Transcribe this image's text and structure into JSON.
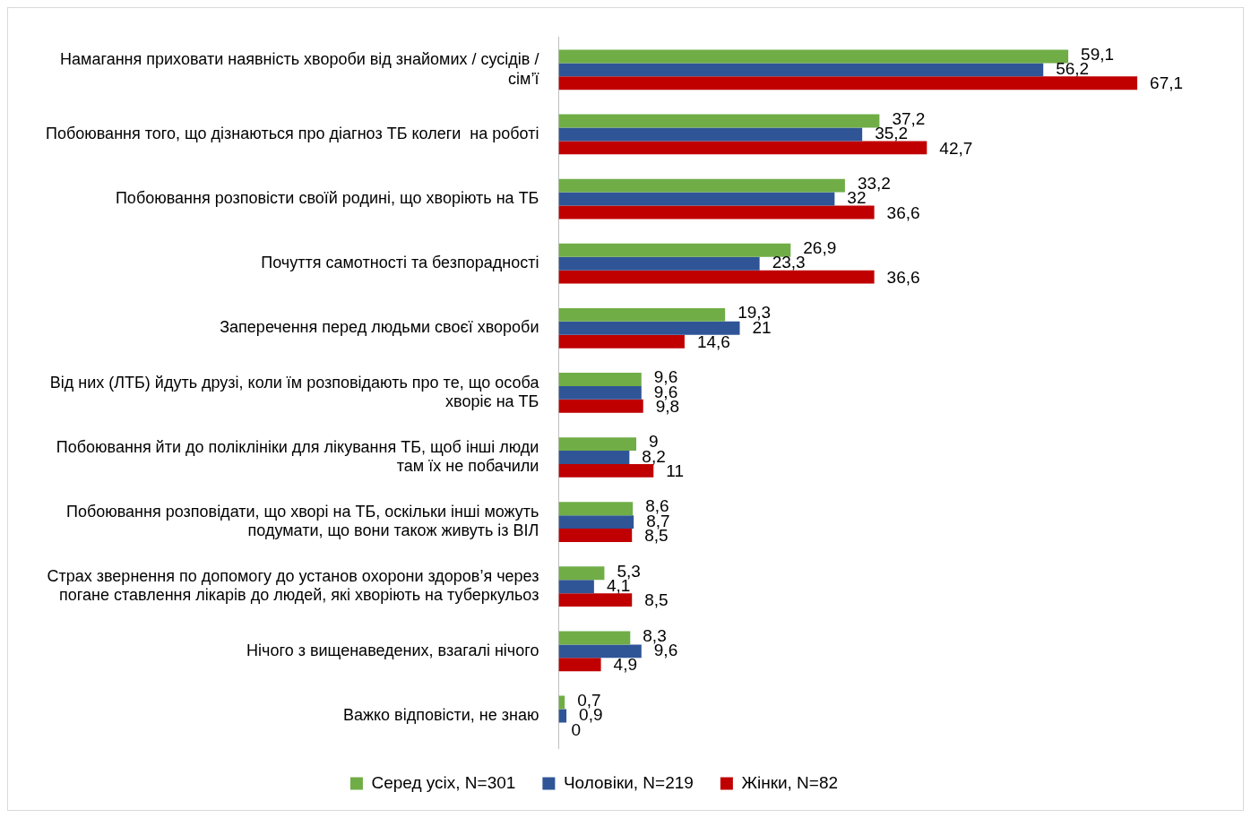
{
  "chart_data": {
    "type": "bar",
    "orientation": "horizontal",
    "categories": [
      "Намагання приховати наявність хвороби від знайомих / сусідів / сім’ї",
      "Побоювання того, що дізнаються про діагноз ТБ колеги  на роботі",
      "Побоювання розповісти своїй родині, що хворіють на ТБ",
      "Почуття самотності та безпорадності",
      "Заперечення перед людьми своєї хвороби",
      "Від них (ЛТБ) йдуть друзі, коли їм розповідають про те, що особа хворіє на ТБ",
      "Побоювання йти до поліклініки для лікування ТБ, щоб інші люди там їх не побачили",
      "Побоювання розповідати, що хворі на ТБ, оскільки інші можуть подумати, що вони також живуть із ВІЛ",
      "Страх звернення по допомогу до установ охорони здоров’я через погане ставлення лікарів до людей, які хворіють на туберкульоз",
      "Нічого з вищенаведених, взагалі нічого",
      "Важко відповісти, не знаю"
    ],
    "series": [
      {
        "name": "Серед усіх, N=301",
        "color": "#70ad47",
        "values": [
          59.1,
          37.2,
          33.2,
          26.9,
          19.3,
          9.6,
          9,
          8.6,
          5.3,
          8.3,
          0.7
        ],
        "value_labels": [
          "59,1",
          "37,2",
          "33,2",
          "26,9",
          "19,3",
          "9,6",
          "9",
          "8,6",
          "5,3",
          "8,3",
          "0,7"
        ]
      },
      {
        "name": "Чоловіки, N=219",
        "color": "#2f5597",
        "values": [
          56.2,
          35.2,
          32,
          23.3,
          21,
          9.6,
          8.2,
          8.7,
          4.1,
          9.6,
          0.9
        ],
        "value_labels": [
          "56,2",
          "35,2",
          "32",
          "23,3",
          "21",
          "9,6",
          "8,2",
          "8,7",
          "4,1",
          "9,6",
          "0,9"
        ]
      },
      {
        "name": "Жінки, N=82",
        "color": "#c00000",
        "values": [
          67.1,
          42.7,
          36.6,
          36.6,
          14.6,
          9.8,
          11,
          8.5,
          8.5,
          4.9,
          0
        ],
        "value_labels": [
          "67,1",
          "42,7",
          "36,6",
          "36,6",
          "14,6",
          "9,8",
          "11",
          "8,5",
          "8,5",
          "4,9",
          "0"
        ]
      }
    ],
    "tick_labels": "y",
    "grid": false,
    "legend": "bottom"
  }
}
